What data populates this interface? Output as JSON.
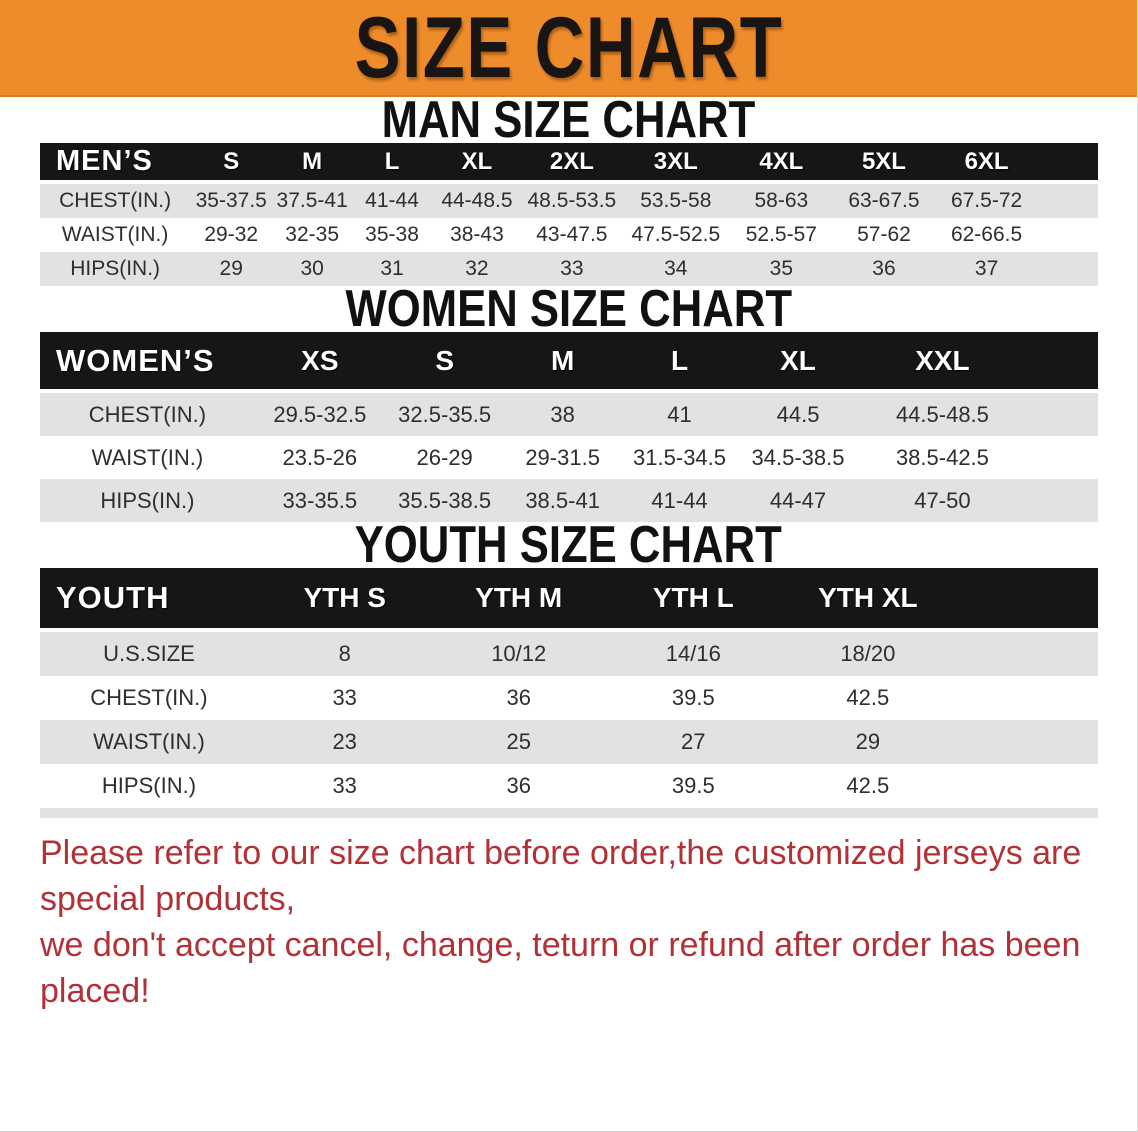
{
  "banner": {
    "title": "SIZE CHART",
    "bg_color": "#ee8b2b",
    "text_color": "#191512"
  },
  "sections": [
    {
      "heading": "MAN SIZE CHART",
      "table": {
        "label": "MEN’S",
        "columns": [
          "S",
          "M",
          "L",
          "XL",
          "2XL",
          "3XL",
          "4XL",
          "5XL",
          "6XL"
        ],
        "rows": [
          {
            "label": "CHEST(IN.)",
            "values": [
              "35-37.5",
              "37.5-41",
              "41-44",
              "44-48.5",
              "48.5-53.5",
              "53.5-58",
              "58-63",
              "63-67.5",
              "67.5-72"
            ]
          },
          {
            "label": "WAIST(IN.)",
            "values": [
              "29-32",
              "32-35",
              "35-38",
              "38-43",
              "43-47.5",
              "47.5-52.5",
              "52.5-57",
              "57-62",
              "62-66.5"
            ]
          },
          {
            "label": "HIPS(IN.)",
            "values": [
              "29",
              "30",
              "31",
              "32",
              "33",
              "34",
              "35",
              "36",
              "37"
            ]
          }
        ]
      }
    },
    {
      "heading": "WOMEN SIZE CHART",
      "table": {
        "label": "WOMEN’S",
        "columns": [
          "XS",
          "S",
          "M",
          "L",
          "XL",
          "XXL"
        ],
        "rows": [
          {
            "label": "CHEST(IN.)",
            "values": [
              "29.5-32.5",
              "32.5-35.5",
              "38",
              "41",
              "44.5",
              "44.5-48.5"
            ]
          },
          {
            "label": "WAIST(IN.)",
            "values": [
              "23.5-26",
              "26-29",
              "29-31.5",
              "31.5-34.5",
              "34.5-38.5",
              "38.5-42.5"
            ]
          },
          {
            "label": "HIPS(IN.)",
            "values": [
              "33-35.5",
              "35.5-38.5",
              "38.5-41",
              "41-44",
              "44-47",
              "47-50"
            ]
          }
        ]
      }
    },
    {
      "heading": "YOUTH SIZE CHART",
      "table": {
        "label": "YOUTH",
        "columns": [
          "YTH S",
          "YTH M",
          "YTH L",
          "YTH XL"
        ],
        "rows": [
          {
            "label": "U.S.SIZE",
            "values": [
              "8",
              "10/12",
              "14/16",
              "18/20"
            ]
          },
          {
            "label": "CHEST(IN.)",
            "values": [
              "33",
              "36",
              "39.5",
              "42.5"
            ]
          },
          {
            "label": "WAIST(IN.)",
            "values": [
              "23",
              "25",
              "27",
              "29"
            ]
          },
          {
            "label": "HIPS(IN.)",
            "values": [
              "33",
              "36",
              "39.5",
              "42.5"
            ]
          }
        ]
      }
    }
  ],
  "disclaimer": {
    "line1": "Please refer to our size chart before order,the customized jerseys are special products,",
    "line2": "we don't accept cancel, change, teturn or refund after order has been placed!",
    "color": "#b23136"
  }
}
